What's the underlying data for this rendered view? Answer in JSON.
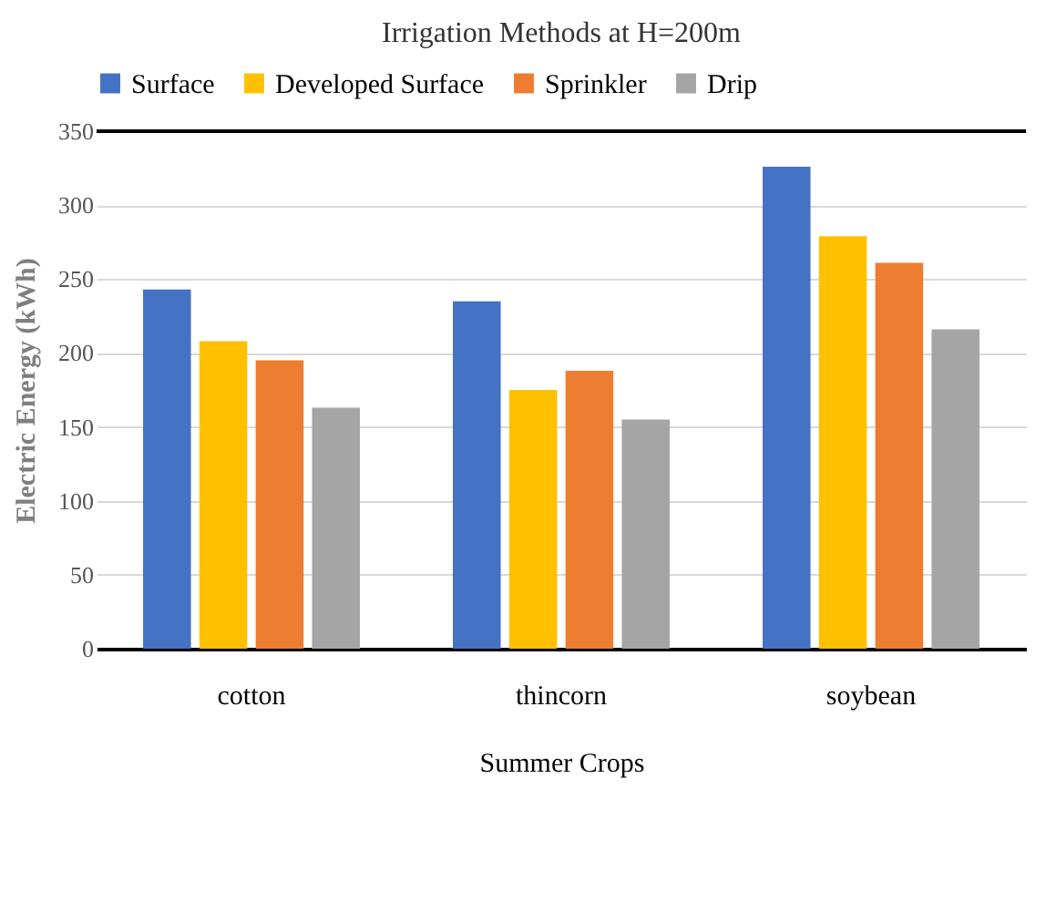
{
  "chart_data": {
    "type": "bar",
    "title": "Irrigation Methods at H=200m",
    "xlabel": "Summer Crops",
    "ylabel": "Electric Energy  (kWh)",
    "categories": [
      "cotton",
      "thincorn",
      "soybean"
    ],
    "series": [
      {
        "name": "Surface",
        "color": "#4472c4",
        "values": [
          243,
          235,
          326
        ]
      },
      {
        "name": "Developed Surface",
        "color": "#ffc000",
        "values": [
          208,
          175,
          279
        ]
      },
      {
        "name": "Sprinkler",
        "color": "#ed7d31",
        "values": [
          195,
          188,
          261
        ]
      },
      {
        "name": "Drip",
        "color": "#a5a5a5",
        "values": [
          163,
          155,
          216
        ]
      }
    ],
    "ylim": [
      0,
      350
    ],
    "yticks": [
      0,
      50,
      100,
      150,
      200,
      250,
      300,
      350
    ],
    "grid": "y",
    "legend": "top"
  }
}
